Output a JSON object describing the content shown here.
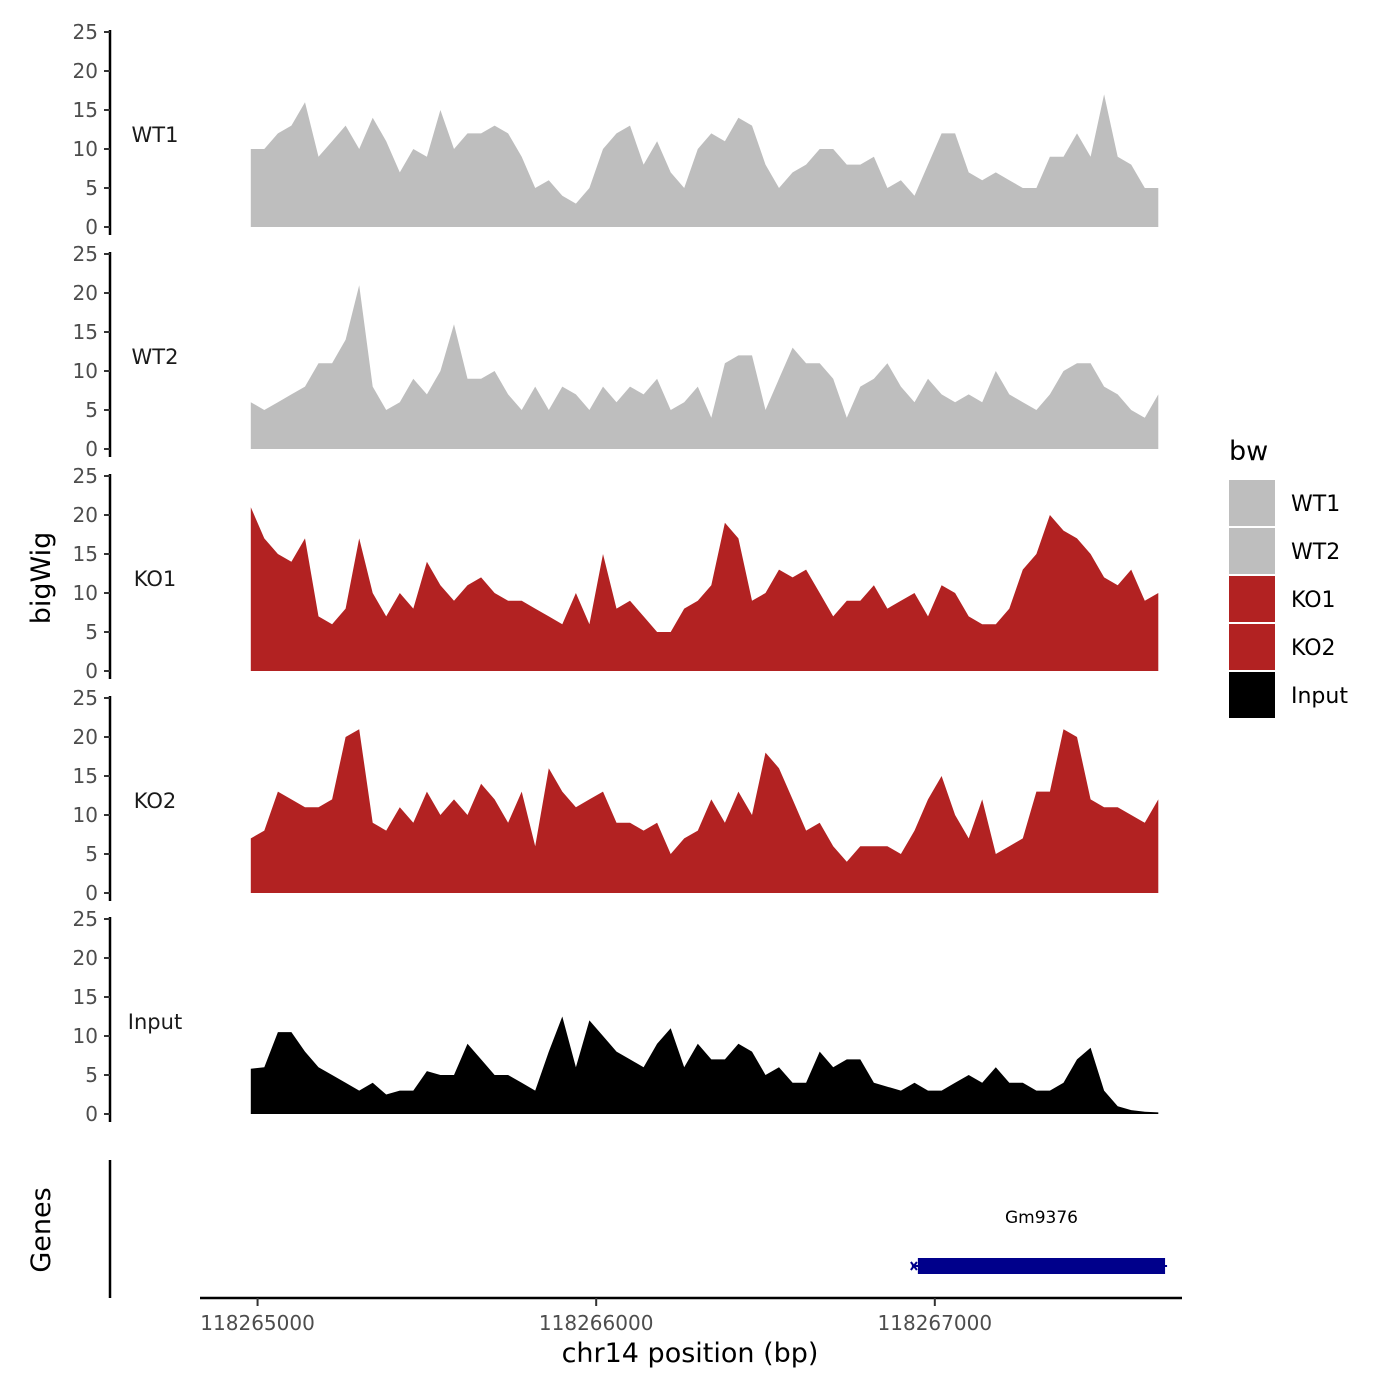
{
  "chart_data": {
    "type": "area",
    "ylabel": "bigWig",
    "xlabel": "chr14 position (bp)",
    "genes_label": "Genes",
    "ylim": [
      0,
      25
    ],
    "yticks": [
      0,
      5,
      10,
      15,
      20,
      25
    ],
    "xlim": [
      118264830,
      118267730
    ],
    "xticks": [
      118265000,
      118266000,
      118267000
    ],
    "xtick_labels": [
      "118265000",
      "118266000",
      "118267000"
    ],
    "grid": false,
    "legend": {
      "title": "bw",
      "position": "right",
      "entries": [
        {
          "label": "WT1",
          "color": "#bebebe"
        },
        {
          "label": "WT2",
          "color": "#bebebe"
        },
        {
          "label": "KO1",
          "color": "#b22222"
        },
        {
          "label": "KO2",
          "color": "#b22222"
        },
        {
          "label": "Input",
          "color": "#000000"
        }
      ]
    },
    "x": [
      118264980,
      118265020,
      118265060,
      118265100,
      118265140,
      118265180,
      118265220,
      118265260,
      118265300,
      118265340,
      118265380,
      118265420,
      118265460,
      118265500,
      118265540,
      118265580,
      118265620,
      118265660,
      118265700,
      118265740,
      118265780,
      118265820,
      118265860,
      118265900,
      118265940,
      118265980,
      118266020,
      118266060,
      118266100,
      118266140,
      118266180,
      118266220,
      118266260,
      118266300,
      118266340,
      118266380,
      118266420,
      118266460,
      118266500,
      118266540,
      118266580,
      118266620,
      118266660,
      118266700,
      118266740,
      118266780,
      118266820,
      118266860,
      118266900,
      118266940,
      118266980,
      118267020,
      118267060,
      118267100,
      118267140,
      118267180,
      118267220,
      118267260,
      118267300,
      118267340,
      118267380,
      118267420,
      118267460,
      118267500,
      118267540,
      118267580,
      118267620,
      118267660
    ],
    "series": [
      {
        "name": "WT1",
        "color": "#bebebe",
        "values": [
          10,
          10,
          12,
          13,
          16,
          9,
          11,
          13,
          10,
          14,
          11,
          7,
          10,
          9,
          15,
          10,
          12,
          12,
          13,
          12,
          9,
          5,
          6,
          4,
          3,
          5,
          10,
          12,
          13,
          8,
          11,
          7,
          5,
          10,
          12,
          11,
          14,
          13,
          8,
          5,
          7,
          8,
          10,
          10,
          8,
          8,
          9,
          5,
          6,
          4,
          8,
          12,
          12,
          7,
          6,
          7,
          6,
          5,
          5,
          9,
          9,
          12,
          9,
          17,
          9,
          8,
          5,
          5
        ]
      },
      {
        "name": "WT2",
        "color": "#bebebe",
        "values": [
          6,
          5,
          6,
          7,
          8,
          11,
          11,
          14,
          21,
          8,
          5,
          6,
          9,
          7,
          10,
          16,
          9,
          9,
          10,
          7,
          5,
          8,
          5,
          8,
          7,
          5,
          8,
          6,
          8,
          7,
          9,
          5,
          6,
          8,
          4,
          11,
          12,
          12,
          5,
          9,
          13,
          11,
          11,
          9,
          4,
          8,
          9,
          11,
          8,
          6,
          9,
          7,
          6,
          7,
          6,
          10,
          7,
          6,
          5,
          7,
          10,
          11,
          11,
          8,
          7,
          5,
          4,
          7
        ]
      },
      {
        "name": "KO1",
        "color": "#b22222",
        "values": [
          21,
          17,
          15,
          14,
          17,
          7,
          6,
          8,
          17,
          10,
          7,
          10,
          8,
          14,
          11,
          9,
          11,
          12,
          10,
          9,
          9,
          8,
          7,
          6,
          10,
          6,
          15,
          8,
          9,
          7,
          5,
          5,
          8,
          9,
          11,
          19,
          17,
          9,
          10,
          13,
          12,
          13,
          10,
          7,
          9,
          9,
          11,
          8,
          9,
          10,
          7,
          11,
          10,
          7,
          6,
          6,
          8,
          13,
          15,
          20,
          18,
          17,
          15,
          12,
          11,
          13,
          9,
          10
        ]
      },
      {
        "name": "KO2",
        "color": "#b22222",
        "values": [
          7,
          8,
          13,
          12,
          11,
          11,
          12,
          20,
          21,
          9,
          8,
          11,
          9,
          13,
          10,
          12,
          10,
          14,
          12,
          9,
          13,
          6,
          16,
          13,
          11,
          12,
          13,
          9,
          9,
          8,
          9,
          5,
          7,
          8,
          12,
          9,
          13,
          10,
          18,
          16,
          12,
          8,
          9,
          6,
          4,
          6,
          6,
          6,
          5,
          8,
          12,
          15,
          10,
          7,
          12,
          5,
          6,
          7,
          13,
          13,
          21,
          20,
          12,
          11,
          11,
          10,
          9,
          12
        ]
      },
      {
        "name": "Input",
        "color": "#000000",
        "values": [
          5.8,
          6,
          10.5,
          10.5,
          8,
          6,
          5,
          4,
          3,
          4,
          2.5,
          3,
          3,
          5.5,
          5,
          5,
          9,
          7,
          5,
          5,
          4,
          3,
          8,
          12.5,
          6,
          12,
          10,
          8,
          7,
          6,
          9,
          11,
          6,
          9,
          7,
          7,
          9,
          8,
          5,
          6,
          4,
          4,
          8,
          6,
          7,
          7,
          4,
          3.5,
          3,
          4,
          3,
          3,
          4,
          5,
          4,
          6,
          4,
          4,
          3,
          3,
          4,
          7,
          8.5,
          3,
          1,
          0.5,
          0.3,
          0.2
        ]
      }
    ],
    "genes": [
      {
        "name": "Gm9376",
        "start": 118266950,
        "end": 118267680,
        "color": "#00008b"
      }
    ]
  }
}
